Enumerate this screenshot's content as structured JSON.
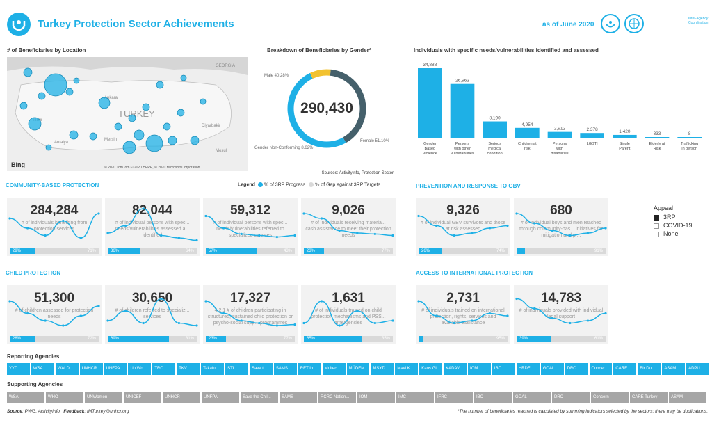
{
  "header": {
    "title": "Turkey Protection Sector Achievements",
    "as_of": "as of June 2020",
    "iacs_label": "Inter-Agency Coordination"
  },
  "map": {
    "title": "# of Beneficiaries by Location",
    "country_label": "TURKEY",
    "places": [
      "GEORGIA",
      "Ankara",
      "Antalya",
      "Mersin",
      "Diyarbakir",
      "Mosul",
      "Izmir"
    ],
    "attribution": "© 2020 TomTom © 2020 HERE, © 2020 Microsoft Corporation",
    "bing": "Bing"
  },
  "colors": {
    "accent": "#1eb0e6",
    "gap": "#d9d9d9",
    "card_bg": "#f2f2f2",
    "yellow": "#f2c230",
    "dark": "#45606b"
  },
  "chart_data": [
    {
      "type": "pie",
      "title": "Breakdown of Beneficiaries by Gender*",
      "total": "290,430",
      "slices": [
        {
          "name": "Male",
          "value": 40.28,
          "label": "Male 40.28%"
        },
        {
          "name": "Female",
          "value": 51.1,
          "label": "Female 51.10%"
        },
        {
          "name": "Gender Non-Conforming",
          "value": 8.62,
          "label": "Gender Non-Conforming 8.62%"
        }
      ],
      "source": "Sources: ActivityInfo, Protection Sector"
    },
    {
      "type": "bar",
      "title": "Individuals with specific needs/vulnerabilities identified and assessed",
      "categories": [
        "Gender Based Violence",
        "Persons with other vulnerabilities",
        "Serious medical condition",
        "Children at risk",
        "Persons with disabilities",
        "LGBTI",
        "Single Parent",
        "Elderly at Risk",
        "Trafficking in person"
      ],
      "values": [
        34888,
        26963,
        8190,
        4954,
        2912,
        2378,
        1420,
        333,
        8
      ],
      "value_labels": [
        "34,888",
        "26,963",
        "8,190",
        "4,954",
        "2,912",
        "2,378",
        "1,420",
        "333",
        "8"
      ]
    }
  ],
  "legend": {
    "label": "Legend",
    "progress": "% of 3RP Progress",
    "gap": "% of Gap against 3RP Targets"
  },
  "sections": {
    "cbp": "COMMUNITY-BASED PROTECTION",
    "cp": "CHILD PROTECTION",
    "gbv": "PREVENTION AND RESPONSE TO GBV",
    "aip": "ACCESS TO INTERNATIONAL PROTECTION"
  },
  "cards": {
    "cbp1": {
      "num": "284,284",
      "desc": "# of individuals benefiting from protection services",
      "pct": "29%",
      "gap": "71%",
      "progress": 29,
      "trend": [
        60,
        40,
        25,
        55,
        20,
        70
      ]
    },
    "cbp2": {
      "num": "82,044",
      "desc": "# of individual persons with spec... needs/vulnerabilities assessed a... identified",
      "pct": "36%",
      "gap": "64%",
      "progress": 36,
      "trend": [
        30,
        45,
        80,
        25,
        20,
        15
      ]
    },
    "cbp3": {
      "num": "59,312",
      "desc": "# of individual persons with spec... needs/vulnerabilities referred to specialized services",
      "pct": "57%",
      "gap": "43%",
      "progress": 57,
      "trend": [
        65,
        40,
        28,
        25,
        22,
        25
      ]
    },
    "cbp4": {
      "num": "9,026",
      "desc": "# of individuals receiving materia... cash assistance to meet their protection needs",
      "pct": "23%",
      "gap": "77%",
      "progress": 23,
      "trend": [
        70,
        60,
        35,
        30,
        28,
        25
      ]
    },
    "gbv1": {
      "num": "9,326",
      "desc": "# of individual GBV survivors and those at risk assessed",
      "pct": "26%",
      "gap": "74%",
      "progress": 26,
      "trend": [
        65,
        45,
        25,
        30,
        40,
        45
      ]
    },
    "gbv2": {
      "num": "680",
      "desc": "# of individual boys and men reached through community-bas... initiatives for mitigation and pr...",
      "pct": "",
      "gap": "91%",
      "progress": 9,
      "trend": [
        70,
        50,
        35,
        25,
        30,
        40
      ]
    },
    "cp1": {
      "num": "51,300",
      "desc": "# of children assessed for protection needs",
      "pct": "28%",
      "gap": "72%",
      "progress": 28,
      "trend": [
        70,
        45,
        30,
        20,
        40,
        60
      ]
    },
    "cp2": {
      "num": "30,650",
      "desc": "# of children referred to specializ... services",
      "pct": "69%",
      "gap": "31%",
      "progress": 69,
      "trend": [
        30,
        50,
        25,
        75,
        25,
        20
      ]
    },
    "cp3": {
      "num": "17,327",
      "desc": "4.2.1 # of children participating in structured, sustained child protection or psycho-social supp... programmes",
      "pct": "23%",
      "gap": "77%",
      "progress": 23,
      "trend": [
        70,
        45,
        30,
        25,
        20,
        22
      ]
    },
    "cp4": {
      "num": "1,631",
      "desc": "# of individuals trained on child protection mechanisms and PSS... emergencies",
      "pct": "65%",
      "gap": "35%",
      "progress": 65,
      "trend": [
        25,
        70,
        20,
        50,
        25,
        30
      ]
    },
    "aip1": {
      "num": "2,731",
      "desc": "# of individuals trained on international protection, rights, services and available assistance",
      "pct": "",
      "gap": "95%",
      "progress": 5,
      "trend": [
        70,
        40,
        25,
        30,
        45,
        40
      ]
    },
    "aip2": {
      "num": "14,783",
      "desc": "# of individuals provided with individual legal support",
      "pct": "39%",
      "gap": "61%",
      "progress": 39,
      "trend": [
        75,
        55,
        35,
        25,
        30,
        45
      ]
    }
  },
  "appeal": {
    "title": "Appeal",
    "options": [
      "3RP",
      "COVID-19",
      "None"
    ]
  },
  "reporting": {
    "title": "Reporting Agencies",
    "items": [
      "YYD",
      "WSA",
      "WALD",
      "UNHCR",
      "UNFPA",
      "Un Wo...",
      "TRC",
      "TKV",
      "Takafu...",
      "STL",
      "Save t...",
      "SAMS",
      "RET In...",
      "Multec...",
      "MÜDEM",
      "MSYD",
      "Mavi K...",
      "Kaos GL",
      "KADAV",
      "IOM",
      "IBC",
      "HRDF",
      "GOAL",
      "DRC",
      "Concer...",
      "CARE...",
      "Bir Du...",
      "ASAM",
      "ADPU"
    ]
  },
  "supporting": {
    "title": "Supporting Agencies",
    "items": [
      "WSA",
      "WHO",
      "UNWomen",
      "UNICEF",
      "UNHCR",
      "UNFPA",
      "Save the Chil...",
      "SAMS",
      "RCRC Nation...",
      "IOM",
      "IMC",
      "IFRC",
      "IBC",
      "GOAL",
      "DRC",
      "Concern",
      "CARE Turkey",
      "ASAM"
    ]
  },
  "footer": {
    "source_label": "Source",
    "source": "PWG, ActivityInfo",
    "feedback_label": "Feedback",
    "feedback": "IMTurkey@unhcr.org",
    "note": "*The number of beneficiaries reached is calculated by summing indicators selected by the sectors; there may be duplications."
  }
}
